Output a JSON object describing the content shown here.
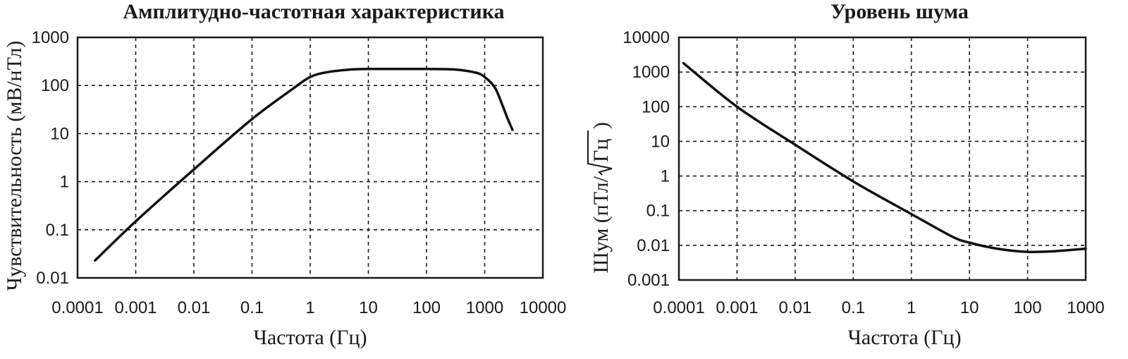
{
  "chart_data": [
    {
      "type": "line",
      "title": "Амплитудно-частотная характеристика",
      "xlabel": "Частота (Гц)",
      "ylabel": "Чувствительность (мВ/нТл)",
      "xscale": "log",
      "yscale": "log",
      "xlim": [
        0.0001,
        10000
      ],
      "ylim": [
        0.01,
        1000
      ],
      "grid": true,
      "x_ticks": [
        "0.0001",
        "0.001",
        "0.01",
        "0.1",
        "1",
        "10",
        "100",
        "1000",
        "10000"
      ],
      "y_ticks": [
        "0.01",
        "0.1",
        "1",
        "10",
        "100",
        "1000"
      ],
      "series": [
        {
          "x": [
            0.0002,
            0.001,
            0.01,
            0.1,
            0.5,
            1,
            2,
            5,
            10,
            50,
            100,
            300,
            700,
            1000,
            1500,
            2000,
            2500,
            3000
          ],
          "y": [
            0.023,
            0.15,
            1.8,
            20,
            85,
            150,
            190,
            215,
            220,
            220,
            220,
            215,
            185,
            150,
            90,
            40,
            20,
            12
          ],
          "color": "#111111"
        }
      ]
    },
    {
      "type": "line",
      "title": "Уровень шума",
      "xlabel": "Частота (Гц)",
      "ylabel": "Шум (пТл/√Гц)",
      "ylabel_parts": {
        "prefix": "Шум (пТл/",
        "radicand": "Гц",
        "suffix": ")"
      },
      "xscale": "log",
      "yscale": "log",
      "xlim": [
        0.0001,
        1000
      ],
      "ylim": [
        0.001,
        10000
      ],
      "grid": true,
      "x_ticks": [
        "0.0001",
        "0.001",
        "0.01",
        "0.1",
        "1",
        "10",
        "100",
        "1000"
      ],
      "y_ticks": [
        "0.001",
        "0.01",
        "0.1",
        "1",
        "10",
        "100",
        "1000",
        "10000"
      ],
      "series": [
        {
          "x": [
            0.00012,
            0.001,
            0.01,
            0.1,
            1,
            5,
            10,
            30,
            100,
            300,
            1000
          ],
          "y": [
            1800,
            100,
            8,
            0.7,
            0.08,
            0.018,
            0.012,
            0.008,
            0.0065,
            0.0068,
            0.008
          ],
          "color": "#111111"
        }
      ]
    }
  ]
}
